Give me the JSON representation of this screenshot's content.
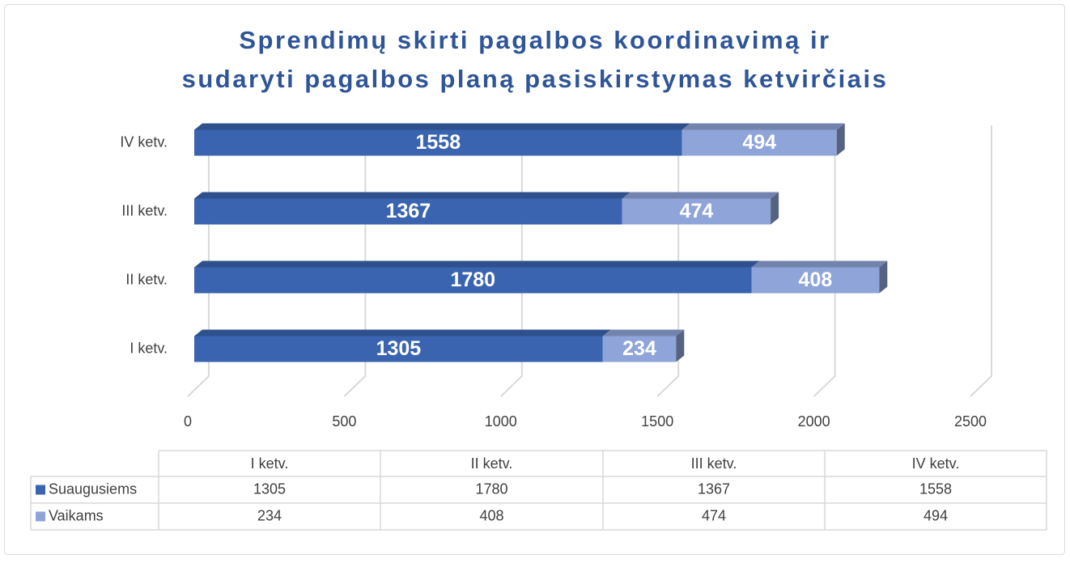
{
  "chart_data": {
    "type": "bar",
    "orientation": "horizontal",
    "stacked": true,
    "title": "Sprendimų skirti pagalbos koordinavimą ir sudaryti pagalbos planą pasiskirstymas ketvirčiais",
    "categories": [
      "I ketv.",
      "II ketv.",
      "III ketv.",
      "IV ketv."
    ],
    "series": [
      {
        "name": "Suaugusiems",
        "color": "#3A64B0",
        "values": [
          1305,
          1780,
          1367,
          1558
        ]
      },
      {
        "name": "Vaikams",
        "color": "#8FA4D8",
        "values": [
          234,
          408,
          474,
          494
        ]
      }
    ],
    "xlim": [
      0,
      2500
    ],
    "xticks": [
      0,
      500,
      1000,
      1500,
      2000,
      2500
    ],
    "grid": true,
    "data_table": true
  }
}
